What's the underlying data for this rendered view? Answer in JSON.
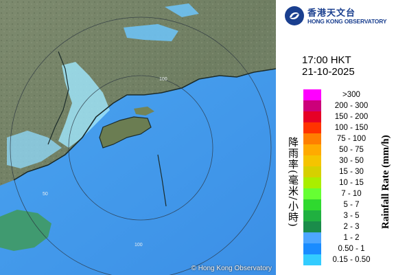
{
  "logo": {
    "name_cn": "香港天文台",
    "name_en": "HONG KONG OBSERVATORY"
  },
  "time": "17:00 HKT",
  "date": "21-10-2025",
  "legend": {
    "label_cn": "降雨率(毫米/小時)",
    "label_en": "Rainfall Rate (mm/h)",
    "items": [
      {
        "label": ">300",
        "color": "#ff00ff"
      },
      {
        "label": "200 - 300",
        "color": "#cc007a"
      },
      {
        "label": "150 - 200",
        "color": "#e60026"
      },
      {
        "label": "100 - 150",
        "color": "#ff3300"
      },
      {
        "label": "75 - 100",
        "color": "#ff7f00"
      },
      {
        "label": "50 - 75",
        "color": "#ffaa00"
      },
      {
        "label": "30 - 50",
        "color": "#f5c400"
      },
      {
        "label": "15 - 30",
        "color": "#d6d000"
      },
      {
        "label": "10 - 15",
        "color": "#aaee00"
      },
      {
        "label": "7 - 10",
        "color": "#66ff33"
      },
      {
        "label": "5 - 7",
        "color": "#2fd92f"
      },
      {
        "label": "3 - 5",
        "color": "#20b040"
      },
      {
        "label": "2 - 3",
        "color": "#1a8c4a"
      },
      {
        "label": "1 - 2",
        "color": "#4da6ff"
      },
      {
        "label": "0.50 - 1",
        "color": "#1a8cff"
      },
      {
        "label": "0.15 - 0.50",
        "color": "#33ccff"
      }
    ]
  },
  "map": {
    "range_labels": [
      "50",
      "100",
      "100"
    ],
    "copyright": "© Hong Kong Observatory"
  }
}
